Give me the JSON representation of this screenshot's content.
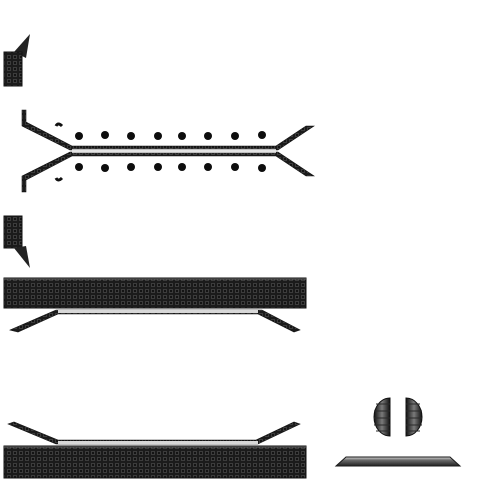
{
  "sprite_sheet": {
    "background": "#ffffff",
    "palette": {
      "track_dark": "#1b1b1b",
      "track_mid": "#3c3c3c",
      "track_highlight": "#6a6a6a",
      "link_dot": "#0d0d0d",
      "rail_light": "#d8d8d8"
    },
    "sprites": [
      {
        "name": "small-track-corner-top",
        "icon": "track-corner-piece"
      },
      {
        "name": "track-assembly-center",
        "icon": "tank-tread-straight"
      },
      {
        "name": "small-track-corner-bottom",
        "icon": "track-corner-piece"
      },
      {
        "name": "track-strip-top",
        "icon": "tank-tread-strip"
      },
      {
        "name": "track-strip-bottom",
        "icon": "tank-tread-strip"
      },
      {
        "name": "wheel-caps",
        "icon": "road-wheel-halves"
      },
      {
        "name": "hull-rail",
        "icon": "rail-bar"
      }
    ]
  }
}
